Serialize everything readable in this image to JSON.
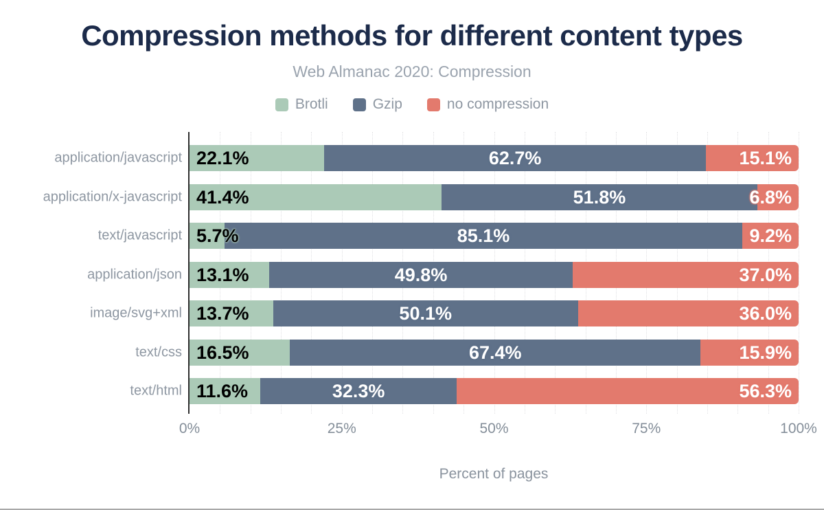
{
  "chart_data": {
    "type": "bar",
    "orientation": "horizontal",
    "stacked": true,
    "title": "Compression methods for different content types",
    "subtitle": "Web Almanac 2020: Compression",
    "xlabel": "Percent of pages",
    "xlim": [
      0,
      100
    ],
    "x_ticks": [
      {
        "value": 0,
        "label": "0%"
      },
      {
        "value": 25,
        "label": "25%"
      },
      {
        "value": 50,
        "label": "50%"
      },
      {
        "value": 75,
        "label": "75%"
      },
      {
        "value": 100,
        "label": "100%"
      }
    ],
    "grid": {
      "minor_step_percent": 5,
      "style": "dotted",
      "color": "#e0e0e3"
    },
    "legend_position": "top",
    "value_suffix": "%",
    "categories": [
      "application/javascript",
      "application/x-javascript",
      "text/javascript",
      "application/json",
      "image/svg+xml",
      "text/css",
      "text/html"
    ],
    "series": [
      {
        "name": "Brotli",
        "color": "#abcab7",
        "label_color": "#000000",
        "label_align": "left",
        "values": [
          22.1,
          41.4,
          5.7,
          13.1,
          13.7,
          16.5,
          11.6
        ]
      },
      {
        "name": "Gzip",
        "color": "#5f7189",
        "label_color": "#ffffff",
        "label_align": "center",
        "values": [
          62.7,
          51.8,
          85.1,
          49.8,
          50.1,
          67.4,
          32.3
        ]
      },
      {
        "name": "no compression",
        "color": "#e37a6d",
        "label_color": "#ffffff",
        "label_align": "right",
        "values": [
          15.1,
          6.8,
          9.2,
          37.0,
          36.0,
          15.9,
          56.3
        ]
      }
    ],
    "style": {
      "title_color": "#1c2b4a",
      "subtitle_color": "#9aa3ae",
      "axis_text_color": "#848e99",
      "category_text_color": "#8e97a2",
      "axis_line_color": "#2f2f2f",
      "background": "#ffffff"
    }
  }
}
